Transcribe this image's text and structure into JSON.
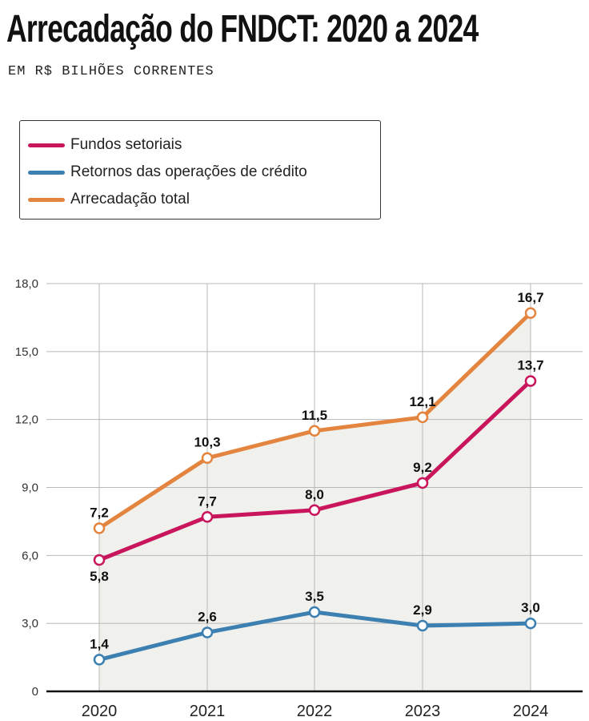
{
  "colors": {
    "fundos": "#c8155b",
    "retornos": "#3c7fb1",
    "total": "#e3843f",
    "grid": "#b8b8b8",
    "area": "#f0f0ec"
  },
  "chart_data": {
    "type": "line",
    "title": "Arrecadação do FNDCT: 2020 a 2024",
    "subtitle": "EM R$ BILHÕES CORRENTES",
    "categories": [
      "2020",
      "2021",
      "2022",
      "2023",
      "2024"
    ],
    "yticks": [
      "0",
      "3,0",
      "6,0",
      "9,0",
      "12,0",
      "15,0",
      "18,0"
    ],
    "ylim": [
      0,
      18
    ],
    "legend_position": "top-left",
    "series": [
      {
        "key": "fundos",
        "name": "Fundos setoriais",
        "color": "#c8155b",
        "values": [
          5.8,
          7.7,
          8.0,
          9.2,
          13.7
        ],
        "labels": [
          "5,8",
          "7,7",
          "8,0",
          "9,2",
          "13,7"
        ]
      },
      {
        "key": "retornos",
        "name": "Retornos das operações de crédito",
        "color": "#3c7fb1",
        "values": [
          1.4,
          2.6,
          3.5,
          2.9,
          3.0
        ],
        "labels": [
          "1,4",
          "2,6",
          "3,5",
          "2,9",
          "3,0"
        ]
      },
      {
        "key": "total",
        "name": "Arrecadação total",
        "color": "#e3843f",
        "values": [
          7.2,
          10.3,
          11.5,
          12.1,
          16.7
        ],
        "labels": [
          "7,2",
          "10,3",
          "11,5",
          "12,1",
          "16,7"
        ]
      }
    ]
  }
}
